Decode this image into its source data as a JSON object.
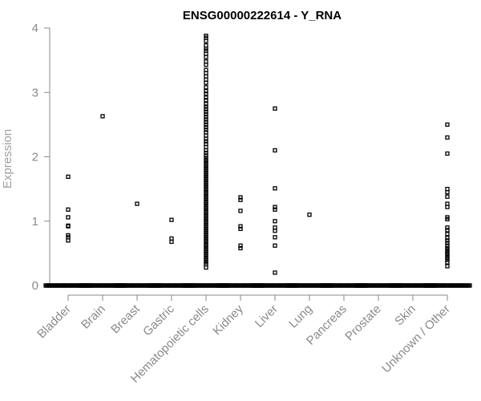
{
  "chart_data": {
    "type": "scatter",
    "title": "ENSG00000222614 - Y_RNA",
    "xlabel": "",
    "ylabel": "Expression",
    "ylim": [
      0,
      4
    ],
    "yticks": [
      0,
      1,
      2,
      3,
      4
    ],
    "grid": false,
    "legend": "none",
    "colors": {
      "points": "#000000",
      "axis": "#8a8a8a",
      "ylabel": "#a0a0a0",
      "title": "#000000"
    },
    "categories": [
      "Bladder",
      "Brain",
      "Breast",
      "Gastric",
      "Hematopoietic cells",
      "Kidney",
      "Liver",
      "Lung",
      "Pancreas",
      "Prostate",
      "Skin",
      "Unknown / Other"
    ],
    "zero_counts": [
      40,
      40,
      40,
      40,
      40,
      40,
      40,
      40,
      40,
      40,
      40,
      40
    ],
    "nonzero_values": [
      [
        1.69,
        1.18,
        1.06,
        0.93,
        0.92,
        0.78,
        0.75,
        0.7
      ],
      [
        2.63
      ],
      [
        1.27
      ],
      [
        1.02,
        0.73,
        0.68
      ],
      [
        3.88,
        3.85,
        3.8,
        3.73,
        3.68,
        3.65,
        3.6,
        3.55,
        3.48,
        3.43,
        3.35,
        3.3,
        3.25,
        3.2,
        3.15,
        3.08,
        3.02,
        2.98,
        2.92,
        2.88,
        2.82,
        2.78,
        2.74,
        2.7,
        2.66,
        2.62,
        2.58,
        2.54,
        2.5,
        2.46,
        2.42,
        2.38,
        2.33,
        2.28,
        2.24,
        2.2,
        2.15,
        2.1,
        2.06,
        2.02,
        1.98,
        1.95,
        1.92,
        1.89,
        1.86,
        1.83,
        1.8,
        1.77,
        1.74,
        1.71,
        1.68,
        1.65,
        1.62,
        1.59,
        1.56,
        1.53,
        1.5,
        1.47,
        1.44,
        1.41,
        1.38,
        1.35,
        1.32,
        1.29,
        1.26,
        1.23,
        1.2,
        1.17,
        1.14,
        1.11,
        1.08,
        1.05,
        1.02,
        0.99,
        0.96,
        0.93,
        0.9,
        0.87,
        0.84,
        0.81,
        0.78,
        0.75,
        0.72,
        0.69,
        0.66,
        0.63,
        0.6,
        0.57,
        0.54,
        0.51,
        0.48,
        0.45,
        0.42,
        0.39,
        0.36,
        0.33,
        0.28
      ],
      [
        1.37,
        1.33,
        1.16,
        0.92,
        0.88,
        0.62,
        0.58
      ],
      [
        2.75,
        2.1,
        1.51,
        1.22,
        1.18,
        1.0,
        0.9,
        0.85,
        0.75,
        0.62,
        0.2
      ],
      [
        1.1
      ],
      [],
      [],
      [],
      [
        2.5,
        2.3,
        2.05,
        1.5,
        1.45,
        1.38,
        1.27,
        1.22,
        1.06,
        1.03,
        0.9,
        0.86,
        0.8,
        0.74,
        0.7,
        0.66,
        0.62,
        0.58,
        0.55,
        0.52,
        0.49,
        0.46,
        0.43,
        0.4,
        0.36,
        0.3
      ]
    ]
  }
}
